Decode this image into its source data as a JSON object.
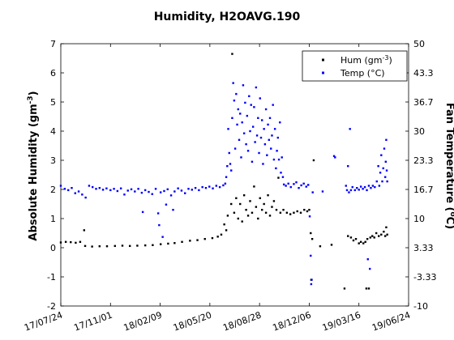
{
  "chart_data": {
    "type": "scatter",
    "title": "Humidity, H2OAVG.190",
    "ylabel": "Absolute Humidity (gm^-3)",
    "y2label": "Fan Temperature (°C)",
    "xlabel": "",
    "x_axis_type": "date",
    "xlim": [
      "2017-07-24",
      "2019-06-24"
    ],
    "ylim": [
      -2,
      7
    ],
    "y2lim": [
      -10,
      50
    ],
    "xticks": [
      "17/07/24",
      "17/11/01",
      "18/02/09",
      "18/05/20",
      "18/08/28",
      "18/12/06",
      "19/03/16",
      "19/06/24"
    ],
    "yticks": [
      -2,
      -1,
      0,
      1,
      2,
      3,
      4,
      5,
      6,
      7
    ],
    "y2ticks": [
      "-10",
      "-3.33",
      "3.33",
      "10",
      "16.7",
      "23.3",
      "30",
      "36.7",
      "43.3",
      "50"
    ],
    "grid": false,
    "legend_position": "top-right",
    "series": [
      {
        "name": "Hum (gm^-3)",
        "color": "#000000",
        "axis": "left",
        "points": [
          [
            "2017-07-24",
            0.18
          ],
          [
            "2017-08-03",
            0.2
          ],
          [
            "2017-08-13",
            0.19
          ],
          [
            "2017-08-23",
            0.17
          ],
          [
            "2017-09-01",
            0.2
          ],
          [
            "2017-09-09",
            0.6
          ],
          [
            "2017-09-11",
            0.06
          ],
          [
            "2017-09-25",
            0.04
          ],
          [
            "2017-10-10",
            0.05
          ],
          [
            "2017-10-25",
            0.05
          ],
          [
            "2017-11-10",
            0.06
          ],
          [
            "2017-11-25",
            0.07
          ],
          [
            "2017-12-10",
            0.06
          ],
          [
            "2017-12-25",
            0.07
          ],
          [
            "2018-01-10",
            0.08
          ],
          [
            "2018-01-25",
            0.09
          ],
          [
            "2018-02-10",
            0.12
          ],
          [
            "2018-02-25",
            0.14
          ],
          [
            "2018-03-10",
            0.16
          ],
          [
            "2018-03-25",
            0.2
          ],
          [
            "2018-04-10",
            0.24
          ],
          [
            "2018-04-25",
            0.26
          ],
          [
            "2018-05-10",
            0.3
          ],
          [
            "2018-05-25",
            0.33
          ],
          [
            "2018-06-05",
            0.38
          ],
          [
            "2018-06-12",
            0.45
          ],
          [
            "2018-06-18",
            0.8
          ],
          [
            "2018-06-22",
            0.6
          ],
          [
            "2018-06-25",
            1.1
          ],
          [
            "2018-07-02",
            1.5
          ],
          [
            "2018-07-04",
            6.65
          ],
          [
            "2018-07-08",
            1.2
          ],
          [
            "2018-07-12",
            1.7
          ],
          [
            "2018-07-16",
            1.0
          ],
          [
            "2018-07-20",
            1.5
          ],
          [
            "2018-07-24",
            0.9
          ],
          [
            "2018-07-28",
            1.8
          ],
          [
            "2018-08-01",
            1.3
          ],
          [
            "2018-08-05",
            1.1
          ],
          [
            "2018-08-09",
            1.6
          ],
          [
            "2018-08-13",
            1.2
          ],
          [
            "2018-08-17",
            2.1
          ],
          [
            "2018-08-21",
            1.4
          ],
          [
            "2018-08-25",
            1.0
          ],
          [
            "2018-08-29",
            1.7
          ],
          [
            "2018-09-02",
            1.3
          ],
          [
            "2018-09-06",
            1.5
          ],
          [
            "2018-09-10",
            1.2
          ],
          [
            "2018-09-14",
            1.8
          ],
          [
            "2018-09-18",
            1.1
          ],
          [
            "2018-09-22",
            1.4
          ],
          [
            "2018-09-26",
            1.6
          ],
          [
            "2018-10-01",
            1.3
          ],
          [
            "2018-10-05",
            2.4
          ],
          [
            "2018-10-09",
            1.2
          ],
          [
            "2018-10-15",
            1.3
          ],
          [
            "2018-10-22",
            1.2
          ],
          [
            "2018-10-29",
            1.15
          ],
          [
            "2018-11-05",
            1.2
          ],
          [
            "2018-11-12",
            1.25
          ],
          [
            "2018-11-19",
            1.2
          ],
          [
            "2018-11-26",
            1.3
          ],
          [
            "2018-12-02",
            1.25
          ],
          [
            "2018-12-06",
            1.3
          ],
          [
            "2018-12-09",
            0.5
          ],
          [
            "2018-12-10",
            -1.1
          ],
          [
            "2018-12-12",
            0.3
          ],
          [
            "2018-12-15",
            3.0
          ],
          [
            "2018-12-28",
            0.05
          ],
          [
            "2019-01-20",
            0.1
          ],
          [
            "2019-02-15",
            -1.4
          ],
          [
            "2019-02-22",
            0.4
          ],
          [
            "2019-02-28",
            0.35
          ],
          [
            "2019-03-05",
            0.25
          ],
          [
            "2019-03-10",
            0.3
          ],
          [
            "2019-03-16",
            0.15
          ],
          [
            "2019-03-20",
            0.2
          ],
          [
            "2019-03-25",
            0.15
          ],
          [
            "2019-03-29",
            0.2
          ],
          [
            "2019-03-31",
            -1.4
          ],
          [
            "2019-04-02",
            0.3
          ],
          [
            "2019-04-05",
            -1.4
          ],
          [
            "2019-04-08",
            0.35
          ],
          [
            "2019-04-12",
            0.4
          ],
          [
            "2019-04-16",
            0.35
          ],
          [
            "2019-04-20",
            0.5
          ],
          [
            "2019-04-25",
            0.4
          ],
          [
            "2019-04-30",
            0.45
          ],
          [
            "2019-05-05",
            0.55
          ],
          [
            "2019-05-08",
            0.4
          ],
          [
            "2019-05-10",
            0.7
          ],
          [
            "2019-05-12",
            0.45
          ]
        ]
      },
      {
        "name": "Temp (°C)",
        "color": "#0000ff",
        "axis": "right",
        "points": [
          [
            "2017-07-24",
            17.5
          ],
          [
            "2017-08-01",
            16.8
          ],
          [
            "2017-08-08",
            16.5
          ],
          [
            "2017-08-15",
            17.0
          ],
          [
            "2017-08-22",
            15.8
          ],
          [
            "2017-08-29",
            16.2
          ],
          [
            "2017-09-05",
            15.5
          ],
          [
            "2017-09-12",
            14.8
          ],
          [
            "2017-09-19",
            17.5
          ],
          [
            "2017-09-26",
            17.2
          ],
          [
            "2017-10-03",
            16.8
          ],
          [
            "2017-10-10",
            17.0
          ],
          [
            "2017-10-17",
            16.6
          ],
          [
            "2017-10-24",
            16.9
          ],
          [
            "2017-11-01",
            16.5
          ],
          [
            "2017-11-08",
            16.8
          ],
          [
            "2017-11-15",
            16.3
          ],
          [
            "2017-11-22",
            16.9
          ],
          [
            "2017-11-29",
            15.5
          ],
          [
            "2017-12-06",
            16.4
          ],
          [
            "2017-12-13",
            16.7
          ],
          [
            "2017-12-20",
            16.2
          ],
          [
            "2017-12-27",
            16.8
          ],
          [
            "2018-01-03",
            15.9
          ],
          [
            "2018-01-05",
            11.5
          ],
          [
            "2018-01-10",
            16.5
          ],
          [
            "2018-01-17",
            16.1
          ],
          [
            "2018-01-24",
            15.6
          ],
          [
            "2018-01-31",
            16.8
          ],
          [
            "2018-02-05",
            11.2
          ],
          [
            "2018-02-07",
            8.5
          ],
          [
            "2018-02-10",
            16.0
          ],
          [
            "2018-02-14",
            5.8
          ],
          [
            "2018-02-17",
            16.3
          ],
          [
            "2018-02-21",
            13.2
          ],
          [
            "2018-02-24",
            16.7
          ],
          [
            "2018-03-03",
            15.3
          ],
          [
            "2018-03-07",
            12.0
          ],
          [
            "2018-03-10",
            16.2
          ],
          [
            "2018-03-17",
            16.9
          ],
          [
            "2018-03-24",
            16.4
          ],
          [
            "2018-03-31",
            15.8
          ],
          [
            "2018-04-07",
            16.8
          ],
          [
            "2018-04-14",
            16.6
          ],
          [
            "2018-04-21",
            17.0
          ],
          [
            "2018-04-28",
            16.5
          ],
          [
            "2018-05-05",
            17.2
          ],
          [
            "2018-05-12",
            17.0
          ],
          [
            "2018-05-19",
            17.3
          ],
          [
            "2018-05-26",
            16.9
          ],
          [
            "2018-06-02",
            17.5
          ],
          [
            "2018-06-09",
            17.2
          ],
          [
            "2018-06-16",
            17.6
          ],
          [
            "2018-06-20",
            18.0
          ],
          [
            "2018-06-22",
            19.5
          ],
          [
            "2018-06-24",
            22.0
          ],
          [
            "2018-06-26",
            30.5
          ],
          [
            "2018-06-28",
            25.0
          ],
          [
            "2018-06-30",
            22.5
          ],
          [
            "2018-07-02",
            21.0
          ],
          [
            "2018-07-04",
            33.0
          ],
          [
            "2018-07-06",
            41.0
          ],
          [
            "2018-07-08",
            37.0
          ],
          [
            "2018-07-10",
            26.0
          ],
          [
            "2018-07-12",
            38.5
          ],
          [
            "2018-07-14",
            31.5
          ],
          [
            "2018-07-16",
            35.0
          ],
          [
            "2018-07-18",
            28.0
          ],
          [
            "2018-07-20",
            34.0
          ],
          [
            "2018-07-22",
            24.0
          ],
          [
            "2018-07-24",
            32.0
          ],
          [
            "2018-07-26",
            40.5
          ],
          [
            "2018-07-28",
            29.5
          ],
          [
            "2018-07-30",
            36.5
          ],
          [
            "2018-08-01",
            27.0
          ],
          [
            "2018-08-03",
            33.5
          ],
          [
            "2018-08-05",
            25.5
          ],
          [
            "2018-08-07",
            38.0
          ],
          [
            "2018-08-09",
            30.0
          ],
          [
            "2018-08-11",
            36.0
          ],
          [
            "2018-08-13",
            23.0
          ],
          [
            "2018-08-15",
            31.0
          ],
          [
            "2018-08-17",
            35.5
          ],
          [
            "2018-08-19",
            27.5
          ],
          [
            "2018-08-21",
            40.0
          ],
          [
            "2018-08-23",
            29.0
          ],
          [
            "2018-08-25",
            33.0
          ],
          [
            "2018-08-27",
            25.0
          ],
          [
            "2018-08-29",
            37.5
          ],
          [
            "2018-08-31",
            28.5
          ],
          [
            "2018-09-02",
            32.5
          ],
          [
            "2018-09-04",
            22.5
          ],
          [
            "2018-09-06",
            30.5
          ],
          [
            "2018-09-08",
            27.0
          ],
          [
            "2018-09-10",
            35.0
          ],
          [
            "2018-09-12",
            24.5
          ],
          [
            "2018-09-14",
            31.5
          ],
          [
            "2018-09-16",
            28.0
          ],
          [
            "2018-09-18",
            33.0
          ],
          [
            "2018-09-20",
            26.0
          ],
          [
            "2018-09-22",
            29.0
          ],
          [
            "2018-09-24",
            36.0
          ],
          [
            "2018-09-26",
            23.5
          ],
          [
            "2018-09-28",
            30.5
          ],
          [
            "2018-09-30",
            21.5
          ],
          [
            "2018-10-02",
            25.5
          ],
          [
            "2018-10-04",
            28.5
          ],
          [
            "2018-10-06",
            23.5
          ],
          [
            "2018-10-08",
            32.0
          ],
          [
            "2018-10-10",
            20.5
          ],
          [
            "2018-10-12",
            24.0
          ],
          [
            "2018-10-14",
            19.5
          ],
          [
            "2018-10-16",
            17.8
          ],
          [
            "2018-10-20",
            17.5
          ],
          [
            "2018-10-25",
            18.0
          ],
          [
            "2018-10-30",
            17.2
          ],
          [
            "2018-11-05",
            17.9
          ],
          [
            "2018-11-10",
            18.3
          ],
          [
            "2018-11-15",
            17.0
          ],
          [
            "2018-11-20",
            17.6
          ],
          [
            "2018-11-25",
            18.0
          ],
          [
            "2018-11-30",
            17.3
          ],
          [
            "2018-12-04",
            17.7
          ],
          [
            "2018-12-07",
            10.5
          ],
          [
            "2018-12-09",
            1.5
          ],
          [
            "2018-12-10",
            -5.0
          ],
          [
            "2018-12-11",
            -4.0
          ],
          [
            "2018-12-13",
            16.0
          ],
          [
            "2019-01-02",
            16.2
          ],
          [
            "2019-01-25",
            24.3
          ],
          [
            "2019-01-27",
            24.0
          ],
          [
            "2019-02-18",
            17.5
          ],
          [
            "2019-02-20",
            16.5
          ],
          [
            "2019-02-22",
            22.0
          ],
          [
            "2019-02-24",
            16.0
          ],
          [
            "2019-02-26",
            30.5
          ],
          [
            "2019-02-28",
            16.5
          ],
          [
            "2019-03-03",
            17.2
          ],
          [
            "2019-03-08",
            16.5
          ],
          [
            "2019-03-12",
            17.0
          ],
          [
            "2019-03-16",
            16.6
          ],
          [
            "2019-03-20",
            17.3
          ],
          [
            "2019-03-24",
            16.8
          ],
          [
            "2019-03-28",
            17.2
          ],
          [
            "2019-04-01",
            16.5
          ],
          [
            "2019-04-03",
            0.7
          ],
          [
            "2019-04-05",
            17.5
          ],
          [
            "2019-04-07",
            -1.5
          ],
          [
            "2019-04-09",
            17.0
          ],
          [
            "2019-04-13",
            17.5
          ],
          [
            "2019-04-17",
            17.2
          ],
          [
            "2019-04-21",
            18.5
          ],
          [
            "2019-04-24",
            22.0
          ],
          [
            "2019-04-26",
            17.5
          ],
          [
            "2019-04-28",
            20.5
          ],
          [
            "2019-04-30",
            24.5
          ],
          [
            "2019-05-02",
            18.5
          ],
          [
            "2019-05-04",
            21.5
          ],
          [
            "2019-05-06",
            26.0
          ],
          [
            "2019-05-08",
            19.5
          ],
          [
            "2019-05-09",
            23.0
          ],
          [
            "2019-05-10",
            28.0
          ],
          [
            "2019-05-11",
            21.0
          ],
          [
            "2019-05-12",
            18.5
          ]
        ]
      }
    ]
  }
}
